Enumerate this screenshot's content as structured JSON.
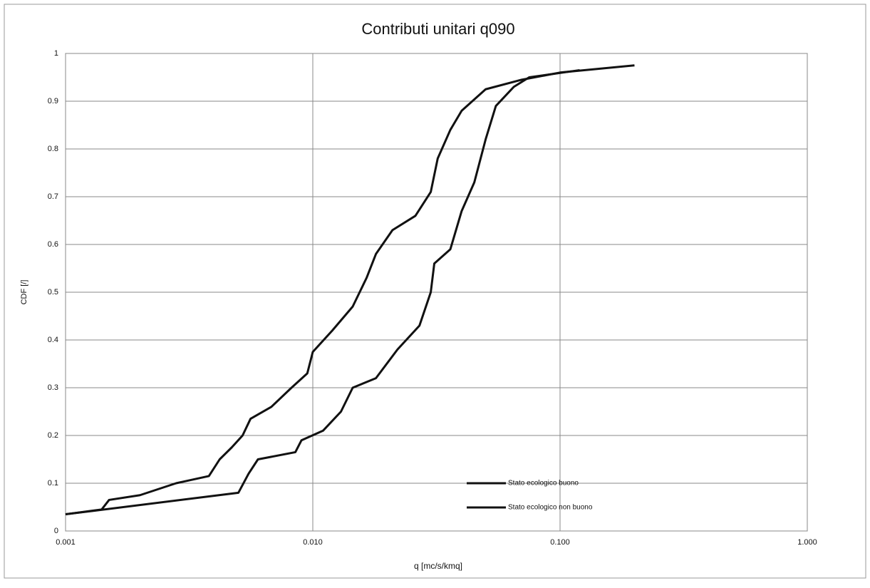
{
  "chart_data": {
    "type": "line",
    "title": "Contributi unitari q090",
    "xlabel": "q [mc/s/kmq]",
    "ylabel": "CDF [/]",
    "xscale": "log",
    "xlim": [
      0.001,
      1
    ],
    "xticks": [
      {
        "value": 0.001,
        "label": "0.001"
      },
      {
        "value": 0.01,
        "label": "0.010"
      },
      {
        "value": 0.1,
        "label": "0.100"
      },
      {
        "value": 1,
        "label": "1.000"
      }
    ],
    "ylim": [
      0,
      1
    ],
    "yticks": [
      0,
      0.1,
      0.2,
      0.3,
      0.4,
      0.5,
      0.6,
      0.7,
      0.8,
      0.9,
      1
    ],
    "grid": true,
    "legend": "lower right",
    "series": [
      {
        "name": "Stato ecologico buono",
        "color": "#111111",
        "x": [
          0.001,
          0.0014,
          0.0015,
          0.002,
          0.0028,
          0.0038,
          0.0042,
          0.0047,
          0.0052,
          0.0056,
          0.0068,
          0.0082,
          0.0095,
          0.01,
          0.012,
          0.0145,
          0.0165,
          0.018,
          0.021,
          0.026,
          0.03,
          0.032,
          0.036,
          0.04,
          0.05,
          0.07,
          0.1,
          0.2
        ],
        "values": [
          0.035,
          0.045,
          0.065,
          0.075,
          0.1,
          0.115,
          0.15,
          0.175,
          0.2,
          0.235,
          0.26,
          0.3,
          0.33,
          0.375,
          0.42,
          0.47,
          0.53,
          0.58,
          0.63,
          0.66,
          0.71,
          0.78,
          0.84,
          0.88,
          0.925,
          0.945,
          0.96,
          0.975
        ]
      },
      {
        "name": "Stato ecologico non buono",
        "color": "#111111",
        "x": [
          0.001,
          0.005,
          0.0055,
          0.006,
          0.0085,
          0.009,
          0.011,
          0.013,
          0.0145,
          0.018,
          0.022,
          0.027,
          0.03,
          0.031,
          0.036,
          0.04,
          0.045,
          0.05,
          0.055,
          0.065,
          0.075,
          0.12
        ],
        "values": [
          0.035,
          0.08,
          0.12,
          0.15,
          0.165,
          0.19,
          0.21,
          0.25,
          0.3,
          0.32,
          0.38,
          0.43,
          0.5,
          0.56,
          0.59,
          0.67,
          0.73,
          0.82,
          0.89,
          0.93,
          0.95,
          0.965
        ]
      }
    ]
  }
}
